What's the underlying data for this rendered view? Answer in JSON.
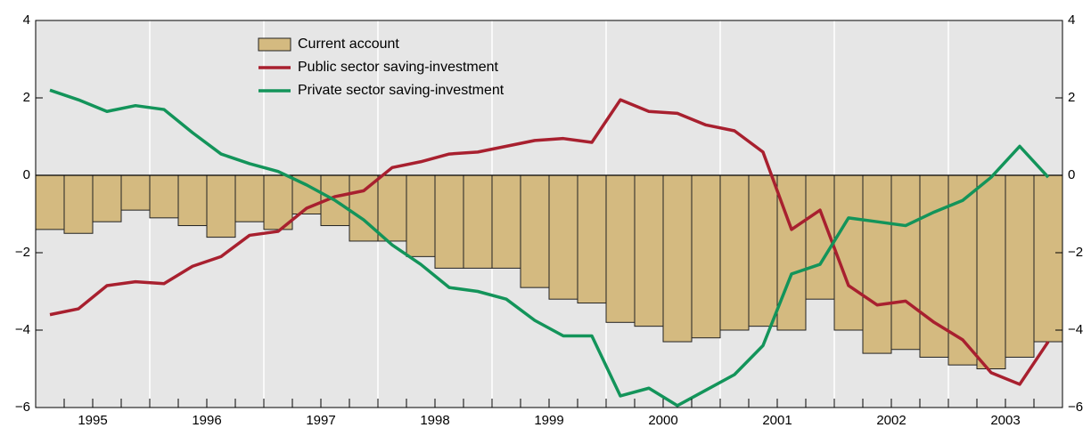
{
  "chart_data": {
    "type": "bar",
    "categories": [
      null,
      "1995",
      null,
      null,
      null,
      "1996",
      null,
      null,
      null,
      "1997",
      null,
      null,
      null,
      "1998",
      null,
      null,
      null,
      "1999",
      null,
      null,
      null,
      "2000",
      null,
      null,
      null,
      "2001",
      null,
      null,
      null,
      "2002",
      null,
      null,
      null,
      "2003",
      null,
      null
    ],
    "series": [
      {
        "name": "Current account",
        "type": "bar",
        "color": "#d4ba80",
        "values": [
          -1.4,
          -1.5,
          -1.2,
          -0.9,
          -1.1,
          -1.3,
          -1.6,
          -1.2,
          -1.4,
          -1.0,
          -1.3,
          -1.7,
          -1.7,
          -2.1,
          -2.4,
          -2.4,
          -2.4,
          -2.9,
          -3.2,
          -3.3,
          -3.8,
          -3.9,
          -4.3,
          -4.2,
          -4.0,
          -3.9,
          -4.0,
          -3.2,
          -4.0,
          -4.6,
          -4.5,
          -4.7,
          -4.9,
          -5.0,
          -4.7,
          -4.3
        ]
      },
      {
        "name": "Public sector saving-investment",
        "type": "line",
        "color": "#a8202f",
        "values": [
          -3.6,
          -3.45,
          -2.85,
          -2.75,
          -2.8,
          -2.35,
          -2.1,
          -1.55,
          -1.45,
          -0.85,
          -0.55,
          -0.4,
          0.2,
          0.35,
          0.55,
          0.6,
          0.75,
          0.9,
          0.95,
          0.85,
          1.95,
          1.65,
          1.6,
          1.3,
          1.15,
          0.6,
          -1.4,
          -0.9,
          -2.85,
          -3.35,
          -3.25,
          -3.8,
          -4.25,
          -5.1,
          -5.4,
          -4.3
        ]
      },
      {
        "name": "Private sector saving-investment",
        "type": "line",
        "color": "#13945a",
        "values": [
          2.2,
          1.95,
          1.65,
          1.8,
          1.7,
          1.1,
          0.55,
          0.3,
          0.1,
          -0.25,
          -0.65,
          -1.15,
          -1.8,
          -2.3,
          -2.9,
          -3.0,
          -3.2,
          -3.75,
          -4.15,
          -4.15,
          -5.7,
          -5.5,
          -5.95,
          -5.55,
          -5.15,
          -4.4,
          -2.55,
          -2.3,
          -1.1,
          -1.2,
          -1.3,
          -0.95,
          -0.65,
          -0.05,
          0.75,
          -0.05
        ]
      }
    ],
    "ylim": [
      -6,
      4
    ],
    "yticks": [
      {
        "value": -6,
        "label": "−6"
      },
      {
        "value": -4,
        "label": "−4"
      },
      {
        "value": -2,
        "label": "−2"
      },
      0,
      2,
      4
    ],
    "y2lim": [
      -6,
      4
    ],
    "y2ticks": [
      {
        "value": -6,
        "label": "−6"
      },
      {
        "value": -4,
        "label": "−4"
      },
      {
        "value": -2,
        "label": "−2"
      },
      0,
      2,
      4
    ],
    "legend": "top-left"
  }
}
